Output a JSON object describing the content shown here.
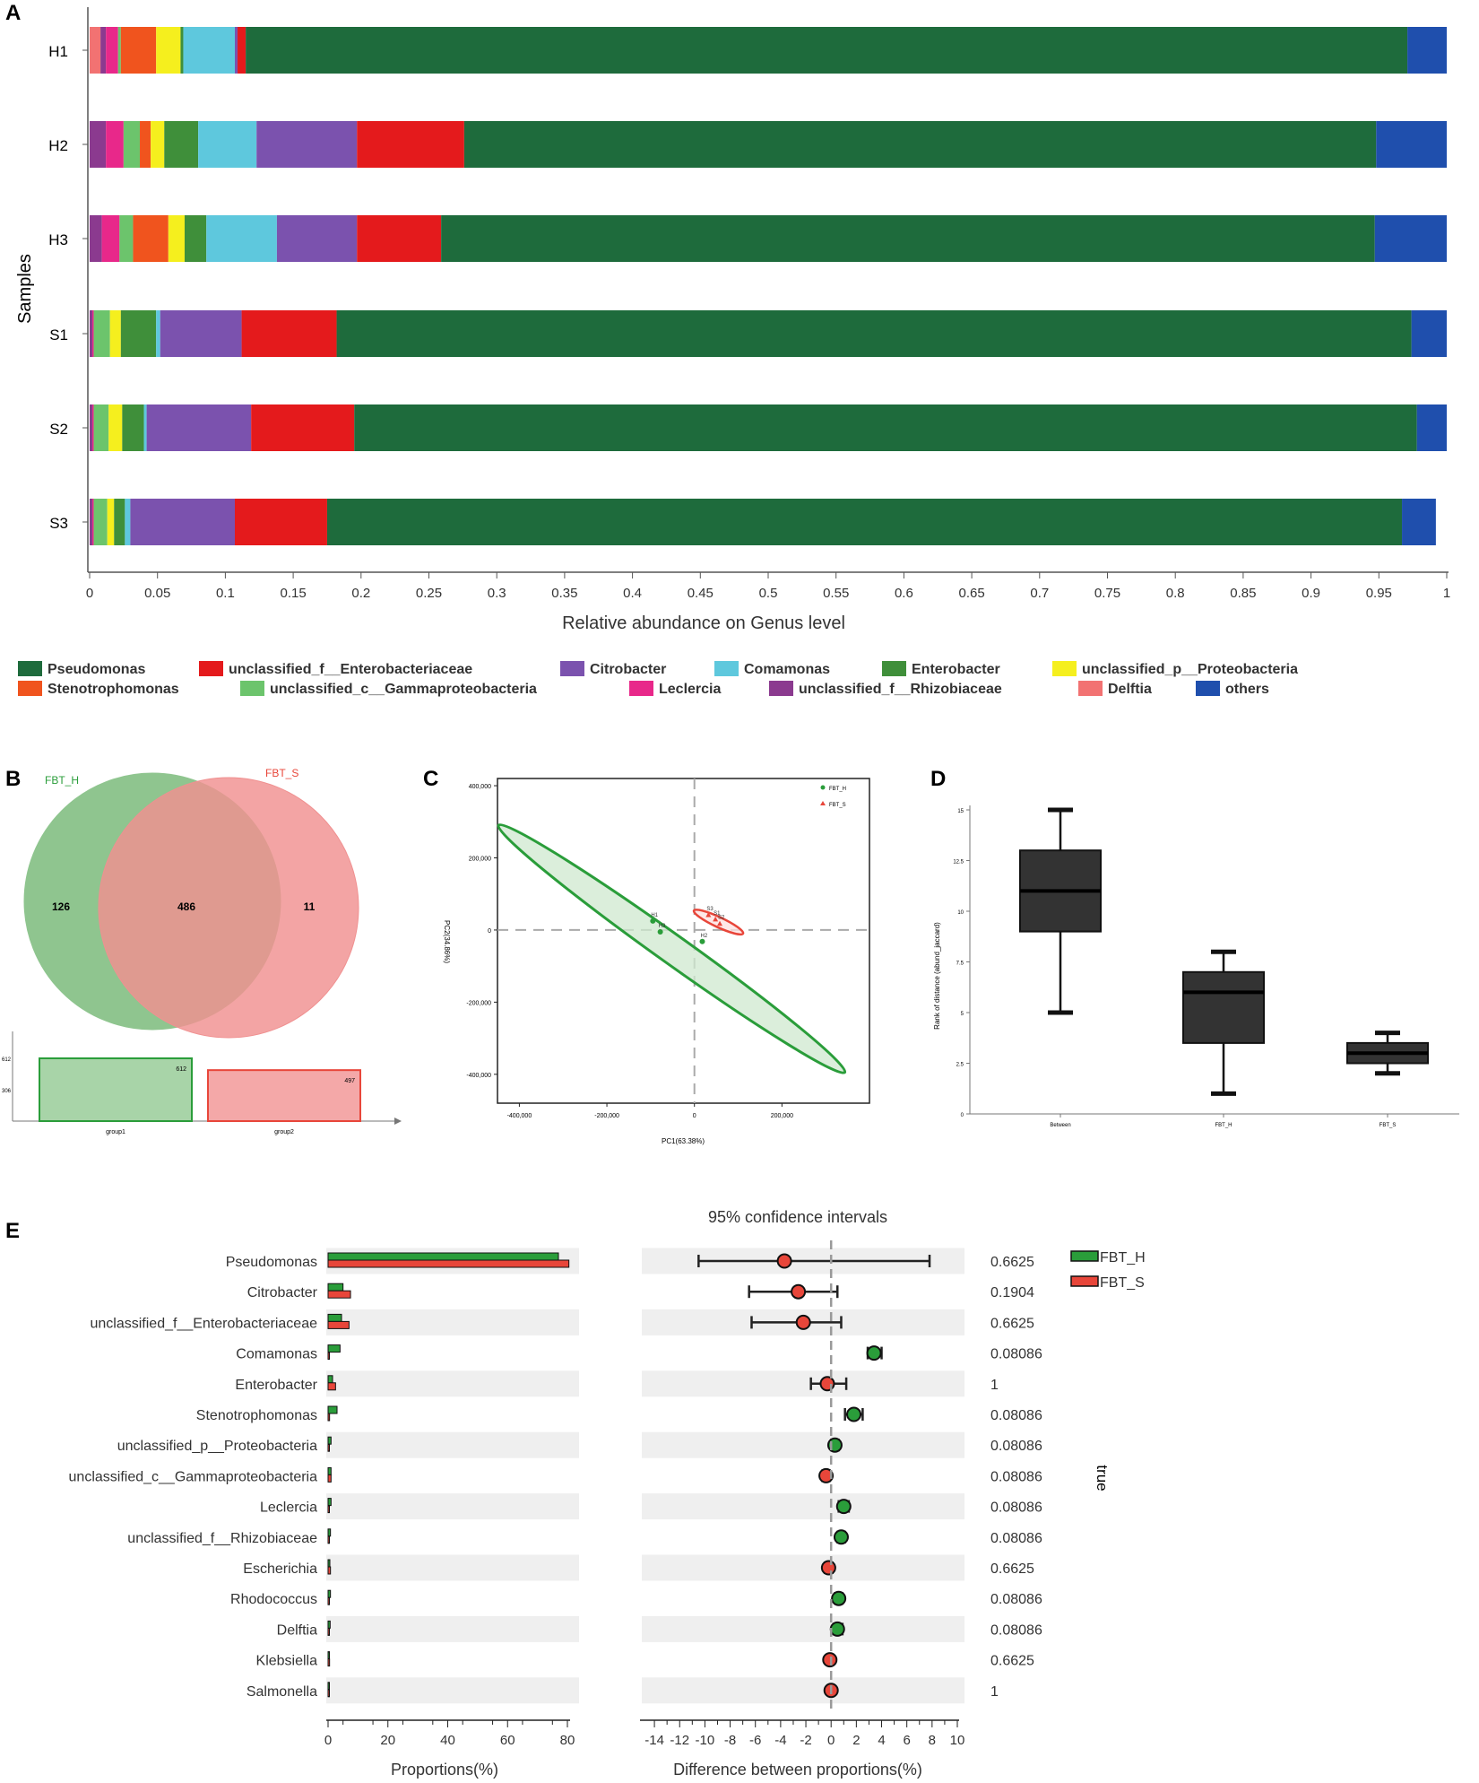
{
  "panel_labels": {
    "a": "A",
    "b": "B",
    "c": "C",
    "d": "D",
    "e": "E"
  },
  "colors": {
    "Pseudomonas": "#1e6b3c",
    "unclassified_f__Enterobacteriaceae": "#e41a1c",
    "Citrobacter": "#7b52ae",
    "Comamonas": "#5ec8dd",
    "Enterobacter": "#3f8f3a",
    "unclassified_p__Proteobacteria": "#f5ef1e",
    "Stenotrophomonas": "#f0541e",
    "unclassified_c__Gammaproteobacteria": "#6cc46c",
    "Leclercia": "#e8288a",
    "unclassified_f__Rhizobiaceae": "#8b3a8f",
    "Delftia": "#f27272",
    "others": "#1f4fad",
    "fbt_h": "#2a9d3a",
    "fbt_s": "#e8463a",
    "venn_h": "#8fc58f",
    "venn_s": "#f09090",
    "box": "#333333"
  },
  "chart_data": [
    {
      "id": "A",
      "type": "bar",
      "orientation": "horizontal-stacked",
      "xlabel": "Relative abundance on Genus level",
      "ylabel": "Samples",
      "xlim": [
        0,
        1
      ],
      "xticks": [
        "0",
        "0.05",
        "0.1",
        "0.15",
        "0.2",
        "0.25",
        "0.3",
        "0.35",
        "0.4",
        "0.45",
        "0.5",
        "0.55",
        "0.6",
        "0.65",
        "0.7",
        "0.75",
        "0.8",
        "0.85",
        "0.9",
        "0.95",
        "1"
      ],
      "categories": [
        "H1",
        "H2",
        "H3",
        "S1",
        "S2",
        "S3"
      ],
      "stack_order": [
        "Delftia",
        "unclassified_f__Rhizobiaceae",
        "Leclercia",
        "unclassified_c__Gammaproteobacteria",
        "Stenotrophomonas",
        "unclassified_p__Proteobacteria",
        "Enterobacter",
        "Comamonas",
        "Citrobacter",
        "unclassified_f__Enterobacteriaceae",
        "Pseudomonas",
        "others"
      ],
      "series": [
        {
          "name": "Delftia",
          "values": [
            0.008,
            0.0,
            0.0,
            0.0,
            0.0,
            0.0
          ]
        },
        {
          "name": "unclassified_f__Rhizobiaceae",
          "values": [
            0.004,
            0.012,
            0.009,
            0.002,
            0.002,
            0.002
          ]
        },
        {
          "name": "Leclercia",
          "values": [
            0.009,
            0.013,
            0.013,
            0.001,
            0.001,
            0.001
          ]
        },
        {
          "name": "unclassified_c__Gammaproteobacteria",
          "values": [
            0.002,
            0.012,
            0.01,
            0.012,
            0.011,
            0.01
          ]
        },
        {
          "name": "Stenotrophomonas",
          "values": [
            0.026,
            0.008,
            0.026,
            0.0,
            0.0,
            0.0
          ]
        },
        {
          "name": "unclassified_p__Proteobacteria",
          "values": [
            0.018,
            0.01,
            0.012,
            0.008,
            0.01,
            0.005
          ]
        },
        {
          "name": "Enterobacter",
          "values": [
            0.002,
            0.025,
            0.016,
            0.026,
            0.016,
            0.008
          ]
        },
        {
          "name": "Comamonas",
          "values": [
            0.038,
            0.043,
            0.052,
            0.003,
            0.002,
            0.004
          ]
        },
        {
          "name": "Citrobacter",
          "values": [
            0.002,
            0.074,
            0.059,
            0.06,
            0.077,
            0.077
          ]
        },
        {
          "name": "unclassified_f__Enterobacteriaceae",
          "values": [
            0.006,
            0.079,
            0.062,
            0.07,
            0.076,
            0.068
          ]
        },
        {
          "name": "Pseudomonas",
          "values": [
            0.856,
            0.672,
            0.688,
            0.792,
            0.783,
            0.792
          ]
        },
        {
          "name": "others",
          "values": [
            0.029,
            0.052,
            0.053,
            0.026,
            0.022,
            0.025
          ]
        }
      ],
      "legend": [
        "Pseudomonas",
        "unclassified_f__Enterobacteriaceae",
        "Citrobacter",
        "Comamonas",
        "Enterobacter",
        "unclassified_p__Proteobacteria",
        "Stenotrophomonas",
        "unclassified_c__Gammaproteobacteria",
        "Leclercia",
        "unclassified_f__Rhizobiaceae",
        "Delftia",
        "others"
      ]
    },
    {
      "id": "B",
      "type": "venn",
      "sets": [
        {
          "name": "FBT_H",
          "value": 612
        },
        {
          "name": "FBT_S",
          "value": 497
        }
      ],
      "regions": {
        "only_h": "126",
        "shared": "486",
        "only_s": "11"
      },
      "bars": {
        "categories": [
          "group1",
          "group2"
        ],
        "values": [
          612,
          497
        ],
        "value_labels": [
          "612",
          "497"
        ],
        "yticks": [
          "612",
          "306"
        ]
      }
    },
    {
      "id": "C",
      "type": "scatter",
      "xlabel": "PC1(63.38%)",
      "ylabel": "PC2(34.86%)",
      "xlim": [
        -450000,
        400000
      ],
      "ylim": [
        -480000,
        420000
      ],
      "xticks": [
        {
          "v": -400000,
          "t": "-400,000"
        },
        {
          "v": -200000,
          "t": "-200,000"
        },
        {
          "v": 0,
          "t": "0"
        },
        {
          "v": 200000,
          "t": "200,000"
        }
      ],
      "yticks": [
        {
          "v": 400000,
          "t": "400,000"
        },
        {
          "v": 200000,
          "t": "200,000"
        },
        {
          "v": 0,
          "t": "0"
        },
        {
          "v": -200000,
          "t": "-200,000"
        },
        {
          "v": -400000,
          "t": "-400,000"
        }
      ],
      "series": [
        {
          "name": "FBT_H",
          "marker": "circle",
          "points": [
            {
              "x": -95000,
              "y": 25000,
              "label": "H1"
            },
            {
              "x": -78000,
              "y": -5000,
              "label": "H3"
            },
            {
              "x": 18000,
              "y": -32000,
              "label": "H2"
            }
          ]
        },
        {
          "name": "FBT_S",
          "marker": "triangle",
          "points": [
            {
              "x": 32000,
              "y": 42000,
              "label": "S3"
            },
            {
              "x": 48000,
              "y": 30000,
              "label": "S1"
            },
            {
              "x": 58000,
              "y": 18000,
              "label": "S2"
            }
          ]
        }
      ],
      "ellipses": [
        {
          "group": "FBT_H",
          "cx": -52000,
          "cy": -52000,
          "rx": 486000,
          "ry": 40000,
          "angle_deg": -35.5
        },
        {
          "group": "FBT_S",
          "cx": 55000,
          "cy": 22000,
          "rx": 62000,
          "ry": 14000,
          "angle_deg": -25
        }
      ]
    },
    {
      "id": "D",
      "type": "boxplot",
      "ylabel": "Rank of distance (abund_jaccard)",
      "ylim": [
        0,
        15
      ],
      "yticks": [
        {
          "v": 15,
          "t": "15"
        },
        {
          "v": 12.5,
          "t": "12.5"
        },
        {
          "v": 10,
          "t": "10"
        },
        {
          "v": 7.5,
          "t": "7.5"
        },
        {
          "v": 5,
          "t": "5"
        },
        {
          "v": 2.5,
          "t": "2.5"
        },
        {
          "v": 0,
          "t": "0"
        }
      ],
      "categories": [
        "Between",
        "FBT_H",
        "FBT_S"
      ],
      "boxes": [
        {
          "min": 5,
          "q1": 9,
          "median": 11,
          "q3": 13,
          "max": 15
        },
        {
          "min": 1,
          "q1": 3.5,
          "median": 6,
          "q3": 7,
          "max": 8
        },
        {
          "min": 2,
          "q1": 2.5,
          "median": 3,
          "q3": 3.5,
          "max": 4
        }
      ]
    },
    {
      "id": "E",
      "type": "bar",
      "orientation": "horizontal-grouped",
      "xlabel": "Proportions(%)",
      "xlim": [
        0,
        80
      ],
      "xticks": [
        "0",
        "20",
        "40",
        "60",
        "80"
      ],
      "categories": [
        "Pseudomonas",
        "Citrobacter",
        "unclassified_f__Enterobacteriaceae",
        "Comamonas",
        "Enterobacter",
        "Stenotrophomonas",
        "unclassified_p__Proteobacteria",
        "unclassified_c__Gammaproteobacteria",
        "Leclercia",
        "unclassified_f__Rhizobiaceae",
        "Escherichia",
        "Rhodococcus",
        "Delftia",
        "Klebsiella",
        "Salmonella"
      ],
      "series": [
        {
          "name": "FBT_H",
          "values": [
            77,
            5,
            4.5,
            4,
            1.5,
            3,
            1,
            1,
            1,
            0.8,
            0.6,
            0.8,
            0.7,
            0.3,
            0.3
          ]
        },
        {
          "name": "FBT_S",
          "values": [
            80.5,
            7.5,
            7,
            0.3,
            2.5,
            0.5,
            0.3,
            1,
            0.2,
            0.1,
            0.8,
            0.1,
            0.2,
            0.5,
            0.3
          ]
        }
      ],
      "legend": [
        "FBT_H",
        "FBT_S"
      ]
    },
    {
      "id": "E-ci",
      "type": "scatter",
      "title": "95% confidence intervals",
      "xlabel": "Difference between proportions(%)",
      "xlim": [
        -15,
        10
      ],
      "xticks": [
        "-14",
        "-12",
        "-10",
        "-8",
        "-6",
        "-4",
        "-2",
        "0",
        "2",
        "4",
        "6",
        "8",
        "10"
      ],
      "points": [
        {
          "diff": -3.7,
          "lo": -10.5,
          "hi": 7.8,
          "group": "FBT_S"
        },
        {
          "diff": -2.6,
          "lo": -6.5,
          "hi": 0.5,
          "group": "FBT_S"
        },
        {
          "diff": -2.2,
          "lo": -6.3,
          "hi": 0.8,
          "group": "FBT_S"
        },
        {
          "diff": 3.4,
          "lo": 2.9,
          "hi": 4.0,
          "group": "FBT_H"
        },
        {
          "diff": -0.3,
          "lo": -1.6,
          "hi": 1.2,
          "group": "FBT_S"
        },
        {
          "diff": 1.8,
          "lo": 1.1,
          "hi": 2.5,
          "group": "FBT_H"
        },
        {
          "diff": 0.3,
          "lo": 0.0,
          "hi": 0.6,
          "group": "FBT_H"
        },
        {
          "diff": -0.4,
          "lo": -0.7,
          "hi": -0.1,
          "group": "FBT_S"
        },
        {
          "diff": 1.0,
          "lo": 0.6,
          "hi": 1.4,
          "group": "FBT_H"
        },
        {
          "diff": 0.8,
          "lo": 0.5,
          "hi": 1.1,
          "group": "FBT_H"
        },
        {
          "diff": -0.2,
          "lo": -0.5,
          "hi": 0.1,
          "group": "FBT_S"
        },
        {
          "diff": 0.6,
          "lo": 0.3,
          "hi": 0.9,
          "group": "FBT_H"
        },
        {
          "diff": 0.5,
          "lo": 0.2,
          "hi": 0.9,
          "group": "FBT_H"
        },
        {
          "diff": -0.1,
          "lo": -0.3,
          "hi": 0.1,
          "group": "FBT_S"
        },
        {
          "diff": 0.0,
          "lo": -0.2,
          "hi": 0.2,
          "group": "FBT_S"
        }
      ],
      "p_values": [
        "0.6625",
        "0.1904",
        "0.6625",
        "0.08086",
        "1",
        "0.08086",
        "0.08086",
        "0.08086",
        "0.08086",
        "0.08086",
        "0.6625",
        "0.08086",
        "0.08086",
        "0.6625",
        "1"
      ],
      "side_label": "true"
    }
  ]
}
